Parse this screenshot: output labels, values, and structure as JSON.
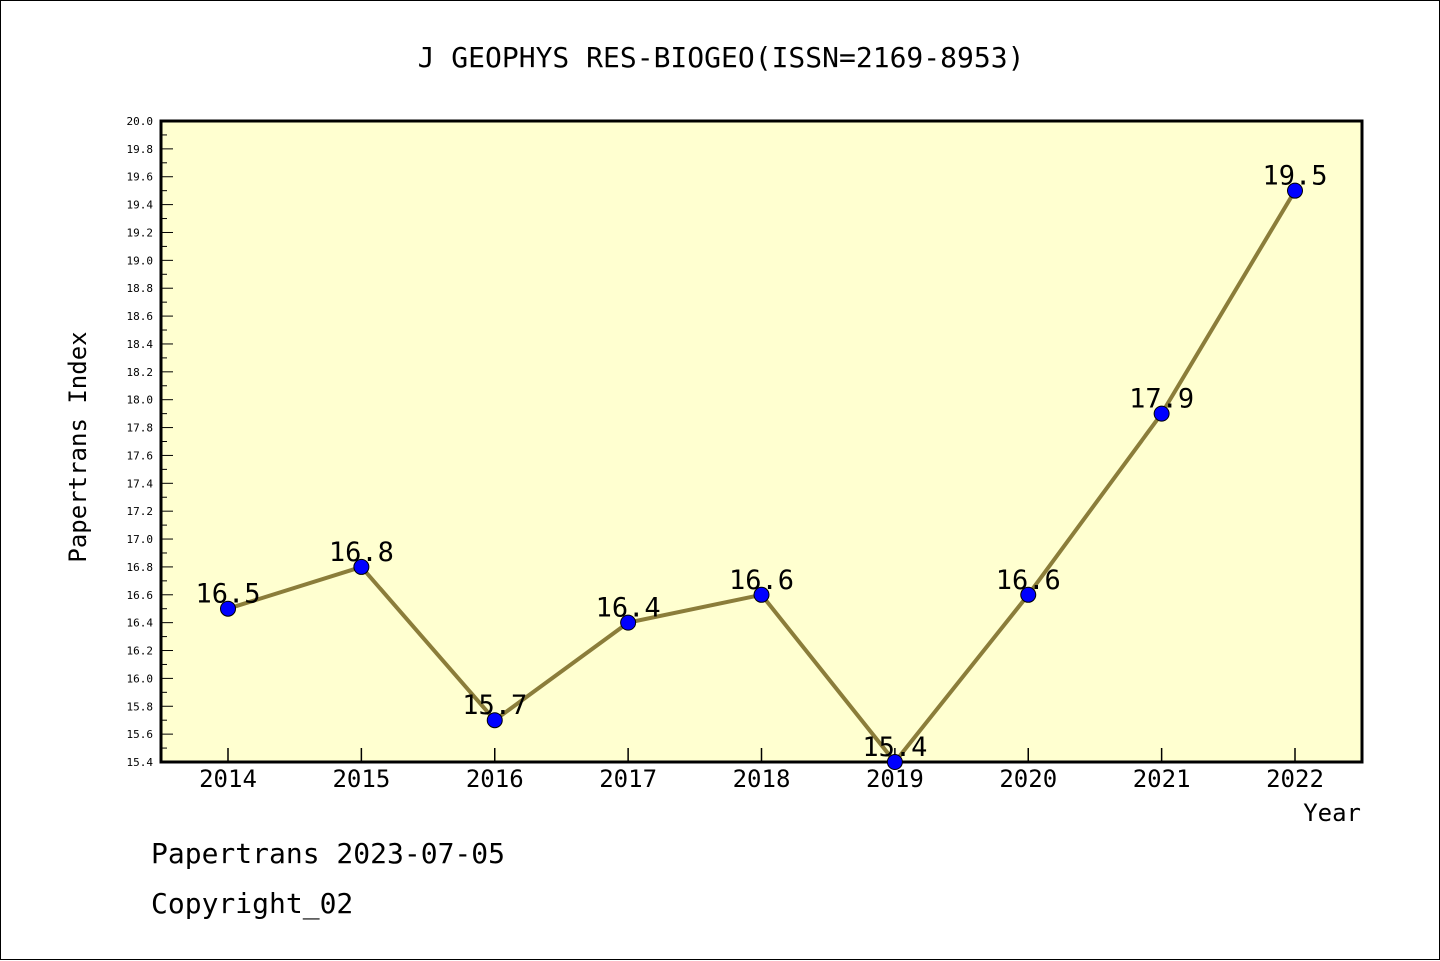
{
  "footer": {
    "line1": "Papertrans 2023-07-05",
    "line2": "Copyright_02"
  },
  "chart_data": {
    "type": "line",
    "title": "J GEOPHYS RES-BIOGEO(ISSN=2169-8953)",
    "xlabel": "Year",
    "ylabel": "Papertrans Index",
    "categories": [
      "2014",
      "2015",
      "2016",
      "2017",
      "2018",
      "2019",
      "2020",
      "2021",
      "2022"
    ],
    "series": [
      {
        "values": [
          16.5,
          16.8,
          15.7,
          16.4,
          16.6,
          15.4,
          16.6,
          17.9,
          19.5
        ],
        "labels": [
          "16.5",
          "16.8",
          "15.7",
          "16.4",
          "16.6",
          "15.4",
          "16.6",
          "17.9",
          "19.5"
        ]
      }
    ],
    "ylim": [
      15.4,
      20.0
    ],
    "ytick_step": 0.2,
    "grid": false,
    "colors": {
      "plot_background": "#ffffd0",
      "line": "#8b7d3a",
      "marker": "#0000ff"
    }
  }
}
